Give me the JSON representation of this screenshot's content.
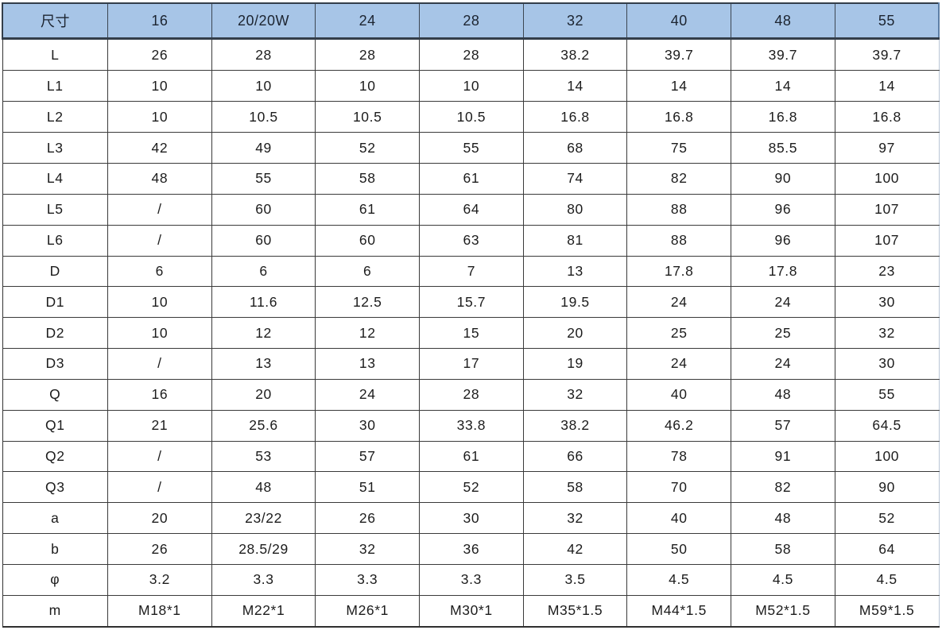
{
  "colors": {
    "header_bg": "#a7c5e7",
    "header_border": "#333e4a",
    "grid_line": "#3a3a3a",
    "text": "#1c1c1c",
    "page_bg": "#ffffff"
  },
  "table": {
    "header": [
      "尺寸",
      "16",
      "20/20W",
      "24",
      "28",
      "32",
      "40",
      "48",
      "55"
    ],
    "rows": [
      {
        "label": "L",
        "values": [
          "26",
          "28",
          "28",
          "28",
          "38.2",
          "39.7",
          "39.7",
          "39.7"
        ]
      },
      {
        "label": "L1",
        "values": [
          "10",
          "10",
          "10",
          "10",
          "14",
          "14",
          "14",
          "14"
        ]
      },
      {
        "label": "L2",
        "values": [
          "10",
          "10.5",
          "10.5",
          "10.5",
          "16.8",
          "16.8",
          "16.8",
          "16.8"
        ]
      },
      {
        "label": "L3",
        "values": [
          "42",
          "49",
          "52",
          "55",
          "68",
          "75",
          "85.5",
          "97"
        ]
      },
      {
        "label": "L4",
        "values": [
          "48",
          "55",
          "58",
          "61",
          "74",
          "82",
          "90",
          "100"
        ]
      },
      {
        "label": "L5",
        "values": [
          "/",
          "60",
          "61",
          "64",
          "80",
          "88",
          "96",
          "107"
        ]
      },
      {
        "label": "L6",
        "values": [
          "/",
          "60",
          "60",
          "63",
          "81",
          "88",
          "96",
          "107"
        ]
      },
      {
        "label": "D",
        "values": [
          "6",
          "6",
          "6",
          "7",
          "13",
          "17.8",
          "17.8",
          "23"
        ]
      },
      {
        "label": "D1",
        "values": [
          "10",
          "11.6",
          "12.5",
          "15.7",
          "19.5",
          "24",
          "24",
          "30"
        ]
      },
      {
        "label": "D2",
        "values": [
          "10",
          "12",
          "12",
          "15",
          "20",
          "25",
          "25",
          "32"
        ]
      },
      {
        "label": "D3",
        "values": [
          "/",
          "13",
          "13",
          "17",
          "19",
          "24",
          "24",
          "30"
        ]
      },
      {
        "label": "Q",
        "values": [
          "16",
          "20",
          "24",
          "28",
          "32",
          "40",
          "48",
          "55"
        ]
      },
      {
        "label": "Q1",
        "values": [
          "21",
          "25.6",
          "30",
          "33.8",
          "38.2",
          "46.2",
          "57",
          "64.5"
        ]
      },
      {
        "label": "Q2",
        "values": [
          "/",
          "53",
          "57",
          "61",
          "66",
          "78",
          "91",
          "100"
        ]
      },
      {
        "label": "Q3",
        "values": [
          "/",
          "48",
          "51",
          "52",
          "58",
          "70",
          "82",
          "90"
        ]
      },
      {
        "label": "a",
        "values": [
          "20",
          "23/22",
          "26",
          "30",
          "32",
          "40",
          "48",
          "52"
        ]
      },
      {
        "label": "b",
        "values": [
          "26",
          "28.5/29",
          "32",
          "36",
          "42",
          "50",
          "58",
          "64"
        ]
      },
      {
        "label": "φ",
        "values": [
          "3.2",
          "3.3",
          "3.3",
          "3.3",
          "3.5",
          "4.5",
          "4.5",
          "4.5"
        ]
      },
      {
        "label": "m",
        "values": [
          "M18*1",
          "M22*1",
          "M26*1",
          "M30*1",
          "M35*1.5",
          "M44*1.5",
          "M52*1.5",
          "M59*1.5"
        ]
      }
    ]
  }
}
